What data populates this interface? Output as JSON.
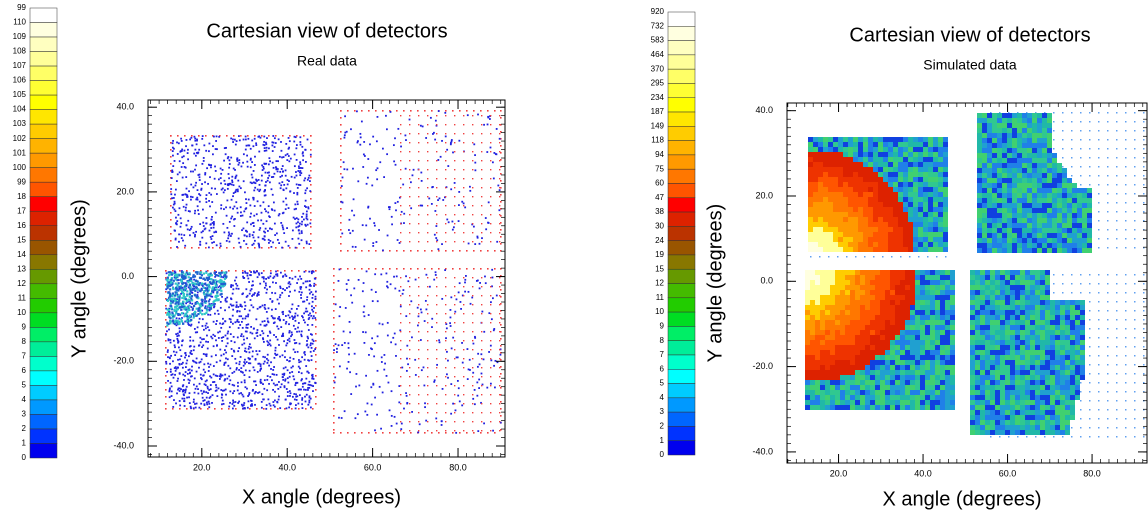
{
  "chart_data": [
    {
      "type": "heatmap",
      "title": "Cartesian view of detectors",
      "subtitle": "Real data",
      "x_label": "X angle (degrees)",
      "y_label": "Y angle (degrees)",
      "xlim": [
        7.4,
        91
      ],
      "ylim": [
        -42.6,
        41.7
      ],
      "xticks": [
        {
          "value": 20,
          "label": "20.0"
        },
        {
          "value": 40,
          "label": "40.0"
        },
        {
          "value": 60,
          "label": "60.0"
        },
        {
          "value": 80,
          "label": "80.0"
        }
      ],
      "yticks": [
        {
          "value": 40,
          "label": "40.0"
        },
        {
          "value": 20,
          "label": "20.0"
        },
        {
          "value": 0,
          "label": "0.0"
        },
        {
          "value": -20,
          "label": "-20.0"
        },
        {
          "value": -40,
          "label": "-40.0"
        }
      ],
      "colorscale": {
        "labels": [
          "99",
          "110",
          "109",
          "108",
          "107",
          "106",
          "105",
          "104",
          "103",
          "102",
          "101",
          "100",
          "99",
          "18",
          "17",
          "16",
          "15",
          "14",
          "13",
          "12",
          "11",
          "10",
          "9",
          "8",
          "7",
          "6",
          "5",
          "4",
          "3",
          "2",
          "1",
          "0"
        ],
        "colors": [
          "#ffffff",
          "#ffffe0",
          "#ffffc0",
          "#ffff99",
          "#ffff66",
          "#ffff33",
          "#ffff00",
          "#ffe600",
          "#ffcc00",
          "#ffb300",
          "#ff9900",
          "#ff7700",
          "#ff5500",
          "#ff0000",
          "#dd2200",
          "#bb3300",
          "#995500",
          "#887700",
          "#669900",
          "#44bb00",
          "#22cc00",
          "#00dd22",
          "#00ee66",
          "#00ee99",
          "#00ffcc",
          "#00ffff",
          "#00ccff",
          "#0099ff",
          "#0066ff",
          "#0033ff",
          "#0000ee"
        ]
      }
    },
    {
      "type": "heatmap",
      "title": "Cartesian view of detectors",
      "subtitle": "Simulated data",
      "x_label": "X angle (degrees)",
      "y_label": "Y angle (degrees)",
      "xlim": [
        7.8,
        93
      ],
      "ylim": [
        -42.6,
        41.8
      ],
      "xticks": [
        {
          "value": 20,
          "label": "20.0"
        },
        {
          "value": 40,
          "label": "40.0"
        },
        {
          "value": 60,
          "label": "60.0"
        },
        {
          "value": 80,
          "label": "80.0"
        }
      ],
      "yticks": [
        {
          "value": 40,
          "label": "40.0"
        },
        {
          "value": 20,
          "label": "20.0"
        },
        {
          "value": 0,
          "label": "0.0"
        },
        {
          "value": -20,
          "label": "-20.0"
        },
        {
          "value": -40,
          "label": "-40.0"
        }
      ],
      "colorscale": {
        "labels": [
          "920",
          "732",
          "583",
          "464",
          "370",
          "295",
          "234",
          "187",
          "149",
          "118",
          "94",
          "75",
          "60",
          "47",
          "38",
          "30",
          "24",
          "19",
          "15",
          "12",
          "11",
          "10",
          "9",
          "8",
          "7",
          "6",
          "5",
          "4",
          "3",
          "2",
          "1",
          "0"
        ],
        "colors": [
          "#ffffff",
          "#ffffe0",
          "#ffffc0",
          "#ffff99",
          "#ffff66",
          "#ffff33",
          "#ffff00",
          "#ffe600",
          "#ffcc00",
          "#ffb300",
          "#ff9900",
          "#ff7700",
          "#ff5500",
          "#ff0000",
          "#dd2200",
          "#bb3300",
          "#995500",
          "#887700",
          "#669900",
          "#44bb00",
          "#22cc00",
          "#00dd22",
          "#00ee66",
          "#00ee99",
          "#00ffcc",
          "#00ffff",
          "#00ccff",
          "#0099ff",
          "#0066ff",
          "#0033ff",
          "#0000ee"
        ]
      }
    }
  ]
}
